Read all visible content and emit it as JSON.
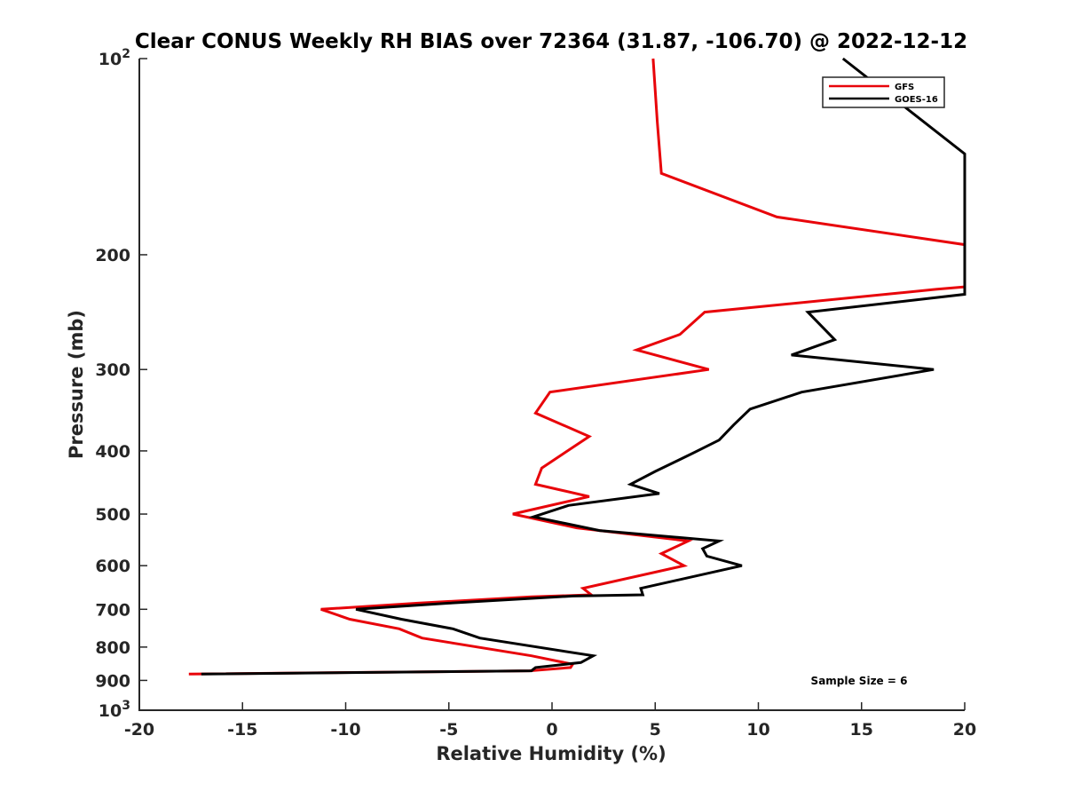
{
  "chart_data": {
    "type": "line",
    "title": "Clear CONUS Weekly RH BIAS over 72364 (31.87, -106.70) @ 2022-12-12",
    "xlabel": "Relative Humidity (%)",
    "ylabel": "Pressure (mb)",
    "xlim": [
      -20,
      20
    ],
    "ylim": [
      100,
      1000
    ],
    "y_scale": "log",
    "y_reversed": true,
    "grid": false,
    "legend_position": "top-right",
    "x_ticks": [
      {
        "value": -20,
        "label": "-20"
      },
      {
        "value": -15,
        "label": "-15"
      },
      {
        "value": -10,
        "label": "-10"
      },
      {
        "value": -5,
        "label": "-5"
      },
      {
        "value": 0,
        "label": "0"
      },
      {
        "value": 5,
        "label": "5"
      },
      {
        "value": 10,
        "label": "10"
      },
      {
        "value": 15,
        "label": "15"
      },
      {
        "value": 20,
        "label": "20"
      }
    ],
    "y_ticks": [
      {
        "value": 100,
        "base": "10",
        "exp": "2"
      },
      {
        "value": 200,
        "label": "200"
      },
      {
        "value": 300,
        "label": "300"
      },
      {
        "value": 400,
        "label": "400"
      },
      {
        "value": 500,
        "label": "500"
      },
      {
        "value": 600,
        "label": "600"
      },
      {
        "value": 700,
        "label": "700"
      },
      {
        "value": 800,
        "label": "800"
      },
      {
        "value": 900,
        "label": "900"
      },
      {
        "value": 1000,
        "base": "10",
        "exp": "3"
      }
    ],
    "series": [
      {
        "name": "GFS",
        "color": "#e8040a",
        "points": [
          [
            4.9,
            100
          ],
          [
            5.1,
            125
          ],
          [
            5.3,
            150
          ],
          [
            10.9,
            175
          ],
          [
            20,
            193
          ],
          [
            20,
            224
          ],
          [
            18.6,
            226
          ],
          [
            7.4,
            245
          ],
          [
            6.2,
            265
          ],
          [
            4.1,
            280
          ],
          [
            7.6,
            300
          ],
          [
            -0.1,
            325
          ],
          [
            -0.8,
            350
          ],
          [
            1.8,
            380
          ],
          [
            -0.5,
            425
          ],
          [
            -0.8,
            450
          ],
          [
            1.8,
            470
          ],
          [
            -1.9,
            500
          ],
          [
            1.2,
            525
          ],
          [
            6.6,
            550
          ],
          [
            5.3,
            575
          ],
          [
            6.4,
            600
          ],
          [
            1.5,
            650
          ],
          [
            1.9,
            665
          ],
          [
            -1.0,
            670
          ],
          [
            -6.5,
            685
          ],
          [
            -11.2,
            700
          ],
          [
            -9.8,
            725
          ],
          [
            -7.4,
            750
          ],
          [
            -6.3,
            775
          ],
          [
            -1.0,
            825
          ],
          [
            1.0,
            850
          ],
          [
            0.9,
            860
          ],
          [
            -1.1,
            870
          ],
          [
            -17.6,
            880
          ]
        ]
      },
      {
        "name": "GOES-16",
        "color": "#000000",
        "points": [
          [
            14.1,
            100
          ],
          [
            20,
            140
          ],
          [
            20,
            230
          ],
          [
            12.4,
            245
          ],
          [
            13.7,
            270
          ],
          [
            11.6,
            285
          ],
          [
            18.5,
            300
          ],
          [
            12.1,
            325
          ],
          [
            9.6,
            345
          ],
          [
            8.8,
            365
          ],
          [
            8.1,
            385
          ],
          [
            6.7,
            405
          ],
          [
            5.0,
            430
          ],
          [
            3.8,
            450
          ],
          [
            5.2,
            465
          ],
          [
            0.8,
            485
          ],
          [
            -0.9,
            505
          ],
          [
            2.3,
            530
          ],
          [
            8.1,
            550
          ],
          [
            7.3,
            565
          ],
          [
            7.5,
            580
          ],
          [
            9.2,
            600
          ],
          [
            4.3,
            650
          ],
          [
            4.4,
            665
          ],
          [
            1.0,
            668
          ],
          [
            -5.0,
            685
          ],
          [
            -9.5,
            700
          ],
          [
            -7.3,
            725
          ],
          [
            -4.8,
            750
          ],
          [
            -3.5,
            775
          ],
          [
            2.0,
            825
          ],
          [
            1.4,
            845
          ],
          [
            -0.8,
            860
          ],
          [
            -1.0,
            870
          ],
          [
            -17.0,
            880
          ]
        ]
      }
    ],
    "annotations": [
      {
        "text": "Sample Size = 6"
      }
    ]
  }
}
